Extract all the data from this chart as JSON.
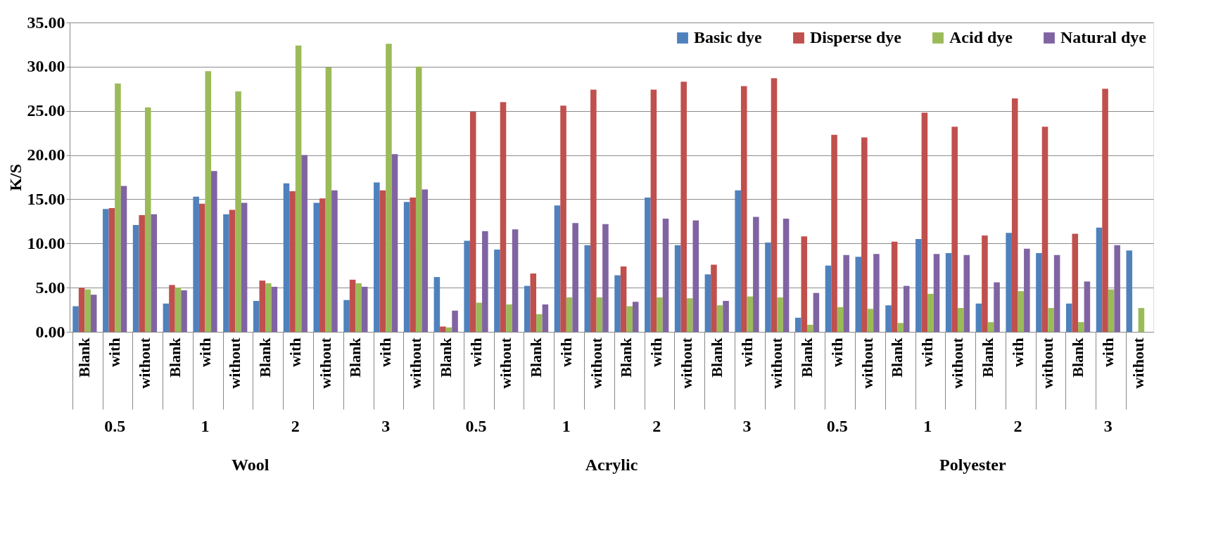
{
  "chart_data": {
    "type": "bar",
    "ylabel": "K/S",
    "categories": [
      "Blank",
      "with",
      "without",
      "Blank",
      "with",
      "without",
      "Blank",
      "with",
      "without",
      "Blank",
      "with",
      "without",
      "Blank",
      "with",
      "without",
      "Blank",
      "with",
      "without",
      "Blank",
      "with",
      "without",
      "Blank",
      "with",
      "without",
      "Blank",
      "with",
      "without",
      "Blank",
      "with",
      "without",
      "Blank",
      "with",
      "without",
      "Blank",
      "with",
      "without"
    ],
    "annotations": [
      "0.5",
      "1",
      "2",
      "3",
      "0.5",
      "1",
      "2",
      "3",
      "0.5",
      "1",
      "2",
      "3",
      "Wool",
      "Acrylic",
      "Polyester"
    ],
    "series": [
      {
        "name": "Basic dye",
        "color": "#4f81bd",
        "values": [
          2.9,
          13.9,
          12.1,
          3.2,
          15.3,
          13.3,
          3.5,
          16.8,
          14.6,
          3.6,
          16.9,
          14.7,
          6.2,
          10.3,
          9.3,
          5.2,
          14.3,
          9.8,
          6.4,
          15.2,
          9.8,
          6.5,
          16.0,
          10.1,
          1.6,
          7.5,
          8.5,
          3.0,
          10.5,
          8.9,
          3.2,
          11.2,
          8.9,
          3.2,
          11.8,
          9.2
        ]
      },
      {
        "name": "Disperse dye",
        "color": "#c0504d",
        "values": [
          5.0,
          14.0,
          13.2,
          5.3,
          14.5,
          13.8,
          5.8,
          15.9,
          15.1,
          5.9,
          16.0,
          15.2,
          0.6,
          24.9,
          26.0,
          6.6,
          25.6,
          27.4,
          7.4,
          27.4,
          28.3,
          7.6,
          27.8,
          28.7,
          10.8,
          22.3,
          22.0,
          10.2,
          24.8,
          23.2,
          10.9,
          26.4,
          23.2,
          11.1,
          27.5,
          null
        ]
      },
      {
        "name": "Acid dye",
        "color": "#9bbb59",
        "values": [
          4.8,
          28.1,
          25.4,
          5.0,
          29.5,
          27.2,
          5.5,
          32.4,
          29.9,
          5.5,
          32.6,
          30.0,
          0.5,
          3.3,
          3.1,
          2.0,
          3.9,
          3.9,
          2.9,
          3.9,
          3.8,
          3.0,
          4.0,
          3.9,
          0.8,
          2.8,
          2.6,
          1.0,
          4.3,
          2.7,
          1.1,
          4.6,
          2.7,
          1.1,
          4.8,
          2.7
        ]
      },
      {
        "name": "Natural dye",
        "color": "#8064a2",
        "values": [
          4.2,
          16.5,
          13.3,
          4.7,
          18.2,
          14.6,
          5.1,
          20.0,
          16.0,
          5.1,
          20.1,
          16.1,
          2.4,
          11.4,
          11.6,
          3.1,
          12.3,
          12.2,
          3.4,
          12.8,
          12.6,
          3.5,
          13.0,
          12.8,
          4.4,
          8.7,
          8.8,
          5.2,
          8.8,
          8.7,
          5.6,
          9.4,
          8.7,
          5.7,
          9.8,
          null
        ]
      }
    ],
    "ylim": [
      0,
      35
    ],
    "yticks": [
      {
        "value": 0,
        "label": "0.00"
      },
      {
        "value": 5,
        "label": "5.00"
      },
      {
        "value": 10,
        "label": "10.00"
      },
      {
        "value": 15,
        "label": "15.00"
      },
      {
        "value": 20,
        "label": "20.00"
      },
      {
        "value": 25,
        "label": "25.00"
      },
      {
        "value": 30,
        "label": "30.00"
      },
      {
        "value": 35,
        "label": "35.00"
      }
    ],
    "grid": "y",
    "legend": "top right"
  }
}
